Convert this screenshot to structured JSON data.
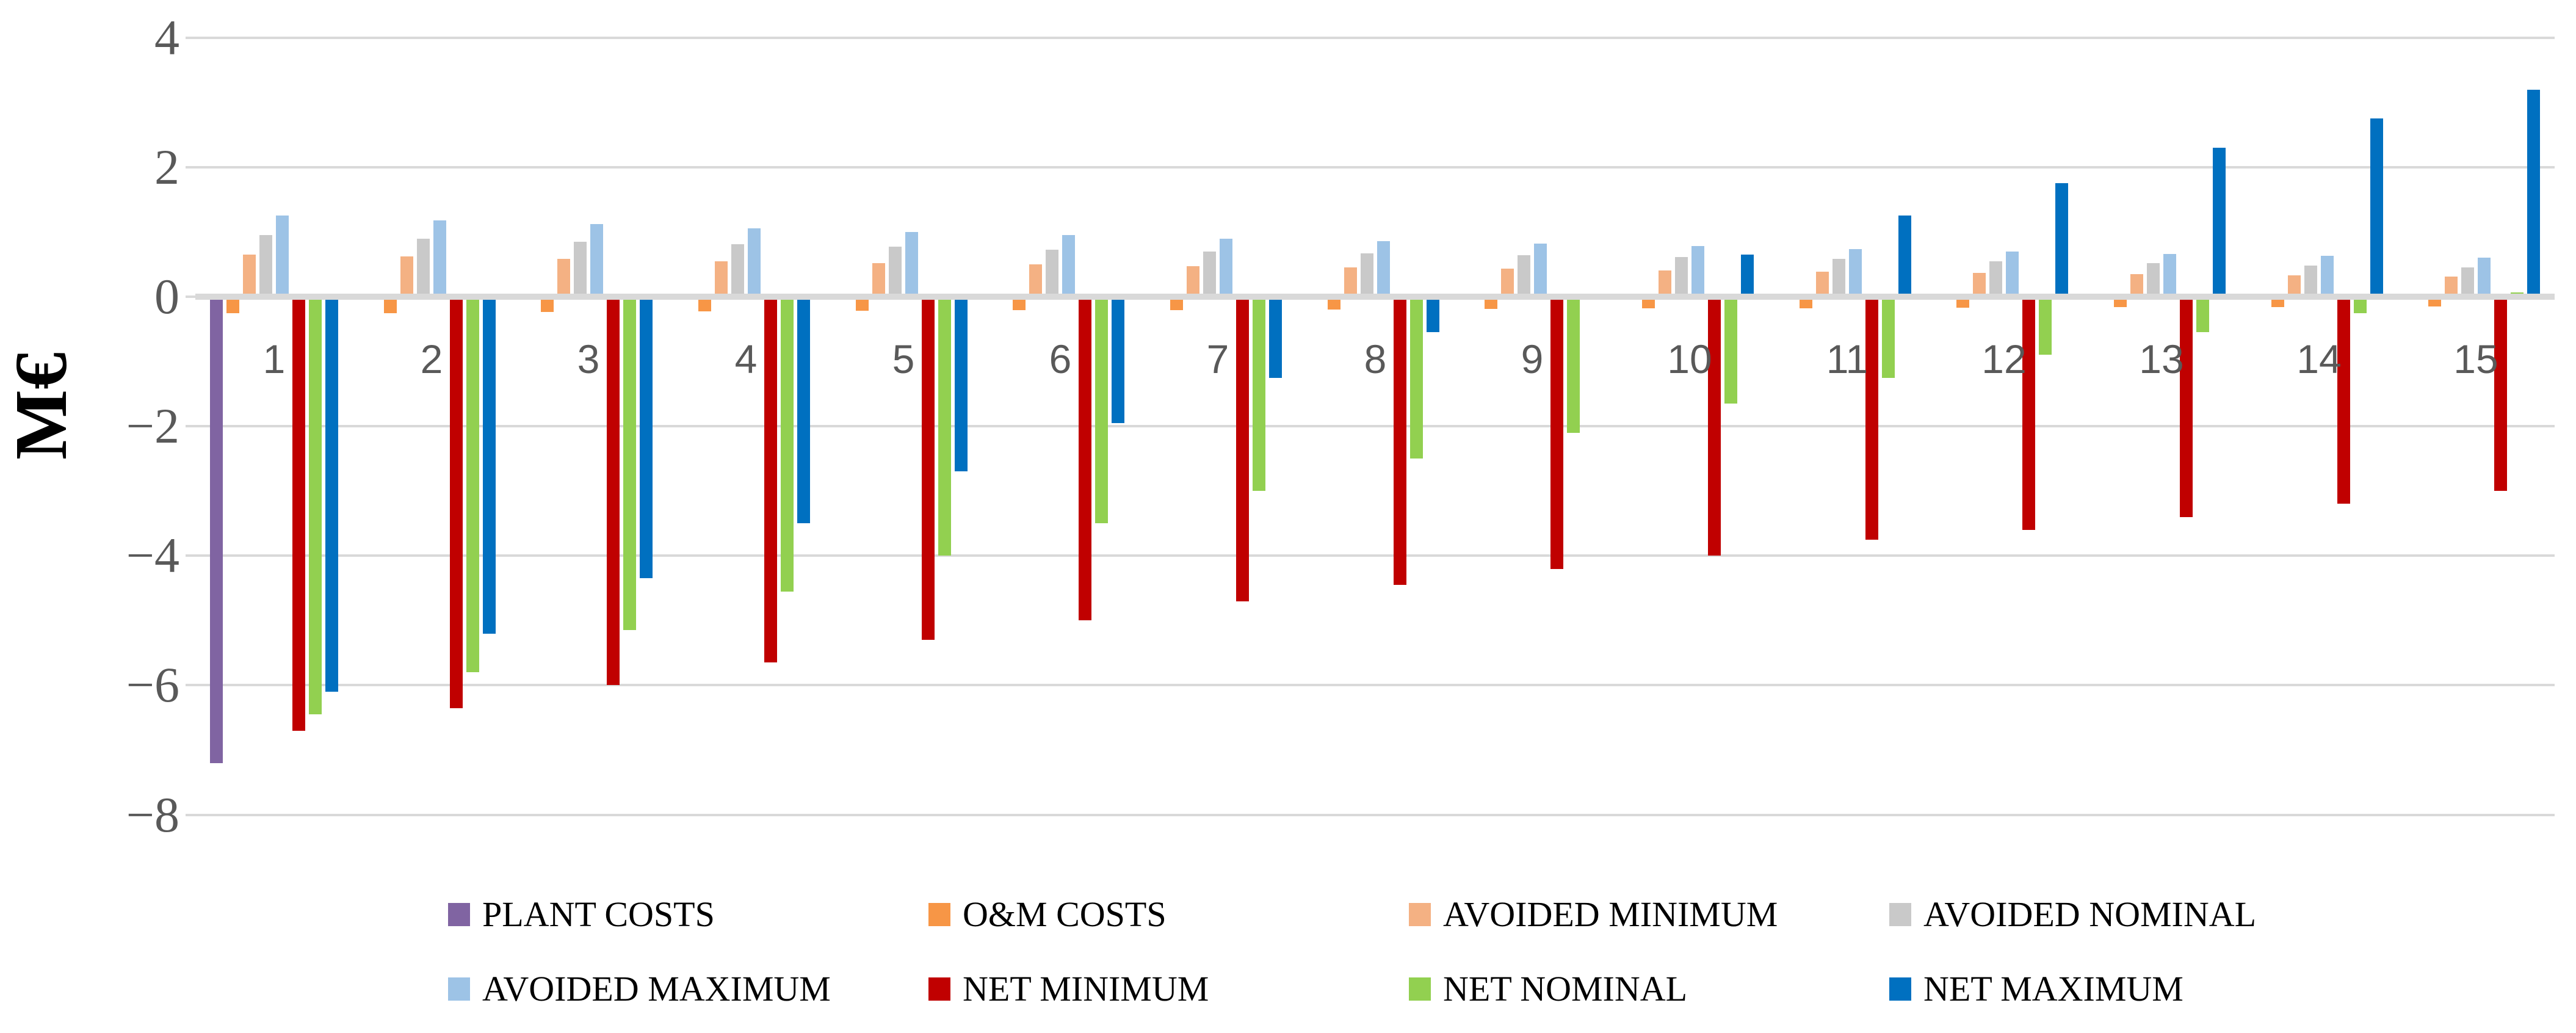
{
  "chart_data": {
    "type": "bar",
    "title": "",
    "ylabel": "M€",
    "xlabel": "",
    "ylim": [
      -8,
      4
    ],
    "yticks": [
      4,
      2,
      0,
      -2,
      -4,
      -6,
      -8
    ],
    "y_tick_labels": [
      "4",
      "2",
      "0",
      "−2",
      "−4",
      "−6",
      "−8"
    ],
    "grid": "horizontal",
    "gridline_color": "#D9D9D9",
    "tick_label_color": "#595959",
    "legend_position": "bottom",
    "categories": [
      "1",
      "2",
      "3",
      "4",
      "5",
      "6",
      "7",
      "8",
      "9",
      "10",
      "11",
      "12",
      "13",
      "14",
      "15"
    ],
    "series": [
      {
        "name": "PLANT COSTS",
        "color": "#8064A2",
        "values": [
          -7.2,
          0,
          0,
          0,
          0,
          0,
          0,
          0,
          0,
          0,
          0,
          0,
          0,
          0,
          0
        ]
      },
      {
        "name": "O&M COSTS",
        "color": "#F79646",
        "values": [
          -0.25,
          -0.25,
          -0.24,
          -0.23,
          -0.22,
          -0.21,
          -0.21,
          -0.2,
          -0.19,
          -0.18,
          -0.18,
          -0.17,
          -0.16,
          -0.16,
          -0.15
        ]
      },
      {
        "name": "AVOIDED MINIMUM",
        "color": "#F4B183",
        "values": [
          0.65,
          0.62,
          0.58,
          0.55,
          0.52,
          0.5,
          0.47,
          0.45,
          0.43,
          0.41,
          0.39,
          0.37,
          0.35,
          0.33,
          0.31
        ]
      },
      {
        "name": "AVOIDED NOMINAL",
        "color": "#C9C9C9",
        "values": [
          0.95,
          0.9,
          0.85,
          0.81,
          0.77,
          0.73,
          0.7,
          0.67,
          0.64,
          0.61,
          0.58,
          0.55,
          0.52,
          0.48,
          0.45
        ]
      },
      {
        "name": "AVOIDED MAXIMUM",
        "color": "#9DC3E6",
        "values": [
          1.25,
          1.18,
          1.12,
          1.06,
          1.0,
          0.95,
          0.9,
          0.86,
          0.82,
          0.78,
          0.74,
          0.7,
          0.66,
          0.63,
          0.6
        ]
      },
      {
        "name": "NET MINIMUM",
        "color": "#C00000",
        "values": [
          -6.7,
          -6.35,
          -6.0,
          -5.65,
          -5.3,
          -5.0,
          -4.7,
          -4.45,
          -4.2,
          -4.0,
          -3.75,
          -3.6,
          -3.4,
          -3.2,
          -3.0
        ]
      },
      {
        "name": "NET NOMINAL",
        "color": "#92D050",
        "values": [
          -6.45,
          -5.8,
          -5.15,
          -4.55,
          -4.0,
          -3.5,
          -3.0,
          -2.5,
          -2.1,
          -1.65,
          -1.25,
          -0.9,
          -0.55,
          -0.25,
          0.07
        ]
      },
      {
        "name": "NET MAXIMUM",
        "color": "#0070C0",
        "values": [
          -6.1,
          -5.2,
          -4.35,
          -3.5,
          -2.7,
          -1.95,
          -1.25,
          -0.55,
          0.05,
          0.65,
          1.25,
          1.75,
          2.3,
          2.75,
          3.2
        ]
      }
    ]
  }
}
